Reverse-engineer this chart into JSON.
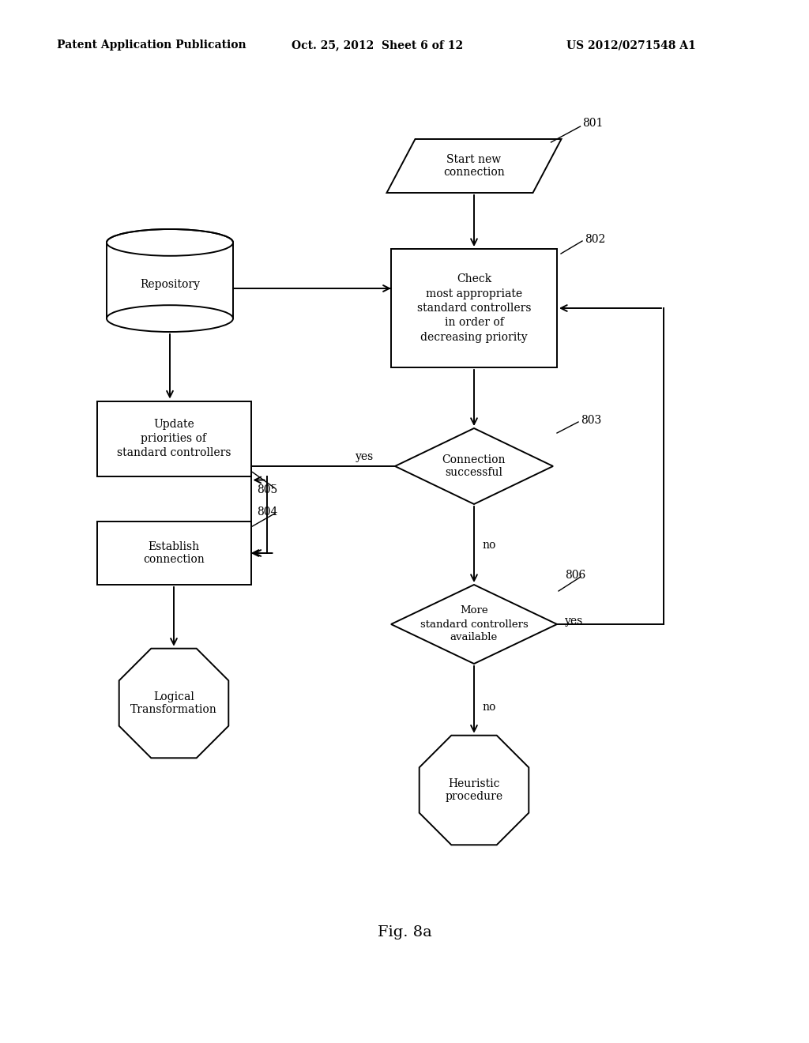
{
  "bg_color": "#ffffff",
  "header_left": "Patent Application Publication",
  "header_center": "Oct. 25, 2012  Sheet 6 of 12",
  "header_right": "US 2012/0271548 A1",
  "fig_label": "Fig. 8a",
  "lw": 1.4,
  "fontsize_main": 10,
  "fontsize_label": 10
}
